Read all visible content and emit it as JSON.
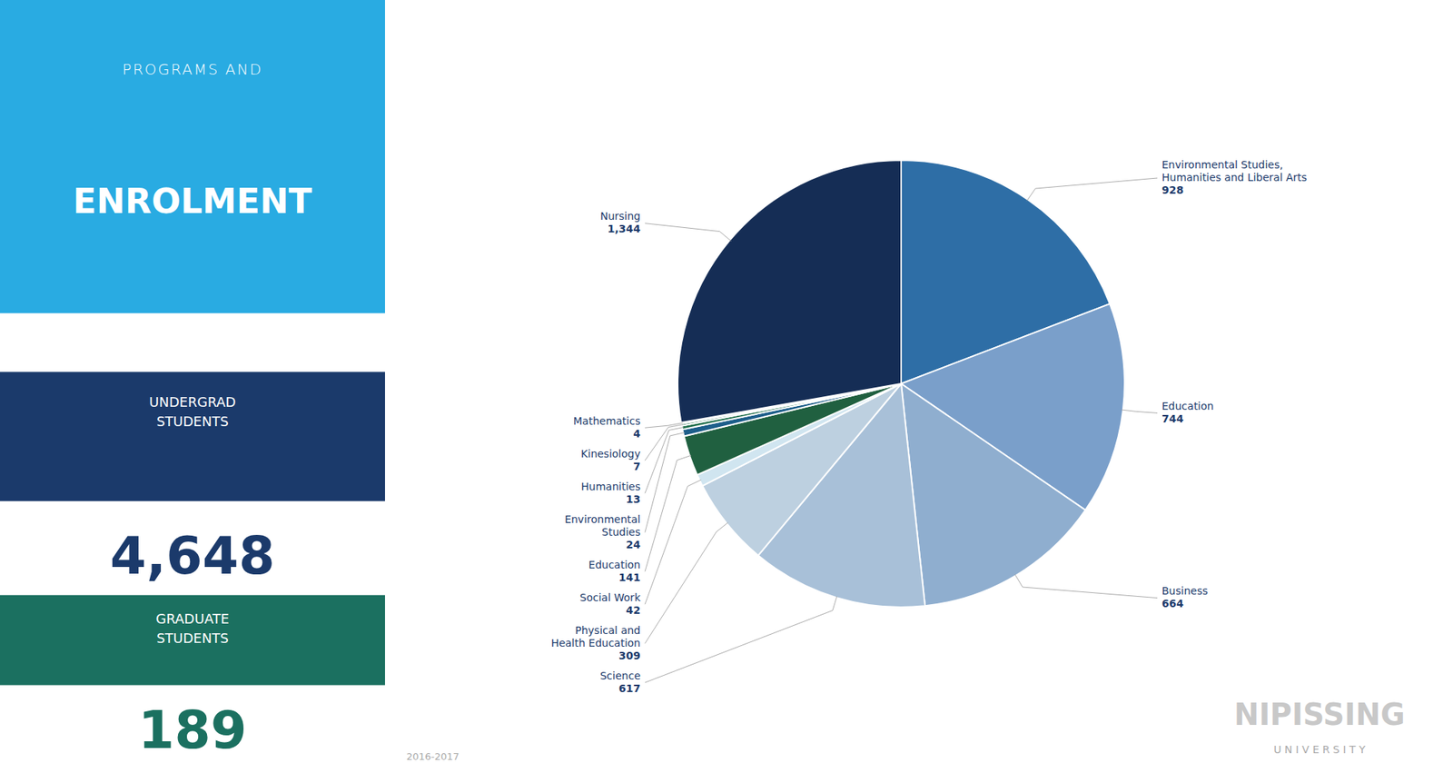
{
  "chart_data": {
    "type": "pie",
    "subtitle": "PROGRAMS AND",
    "title": "ENROLMENT",
    "categories": [
      "Environmental Studies,\nHumanities and Liberal Arts",
      "Education",
      "Business",
      "Science",
      "Physical and\nHealth Education",
      "Social Work",
      "Education",
      "Environmental\nStudies",
      "Humanities",
      "Kinesiology",
      "Mathematics",
      "Nursing"
    ],
    "values": [
      928,
      744,
      664,
      617,
      309,
      42,
      141,
      24,
      13,
      7,
      4,
      1344
    ],
    "value_labels": [
      "928",
      "744",
      "664",
      "617",
      "309",
      "42",
      "141",
      "24",
      "13",
      "7",
      "4",
      "1,344"
    ],
    "colors": [
      "#2E6EA6",
      "#7A9FCA",
      "#8FAECF",
      "#A8C0D8",
      "#BDD0E0",
      "#D0E5F0",
      "#206040",
      "#1D5E8A",
      "#267350",
      "#267350",
      "#267350",
      "#152D55"
    ],
    "data_labels": true,
    "annotations": [
      "UNDERGRAD\nSTUDENTS",
      "4,648",
      "GRADUATE\nSTUDENTS",
      "189",
      "2016-2017",
      "NIPISSING",
      "U N I V E R S I T Y"
    ]
  }
}
